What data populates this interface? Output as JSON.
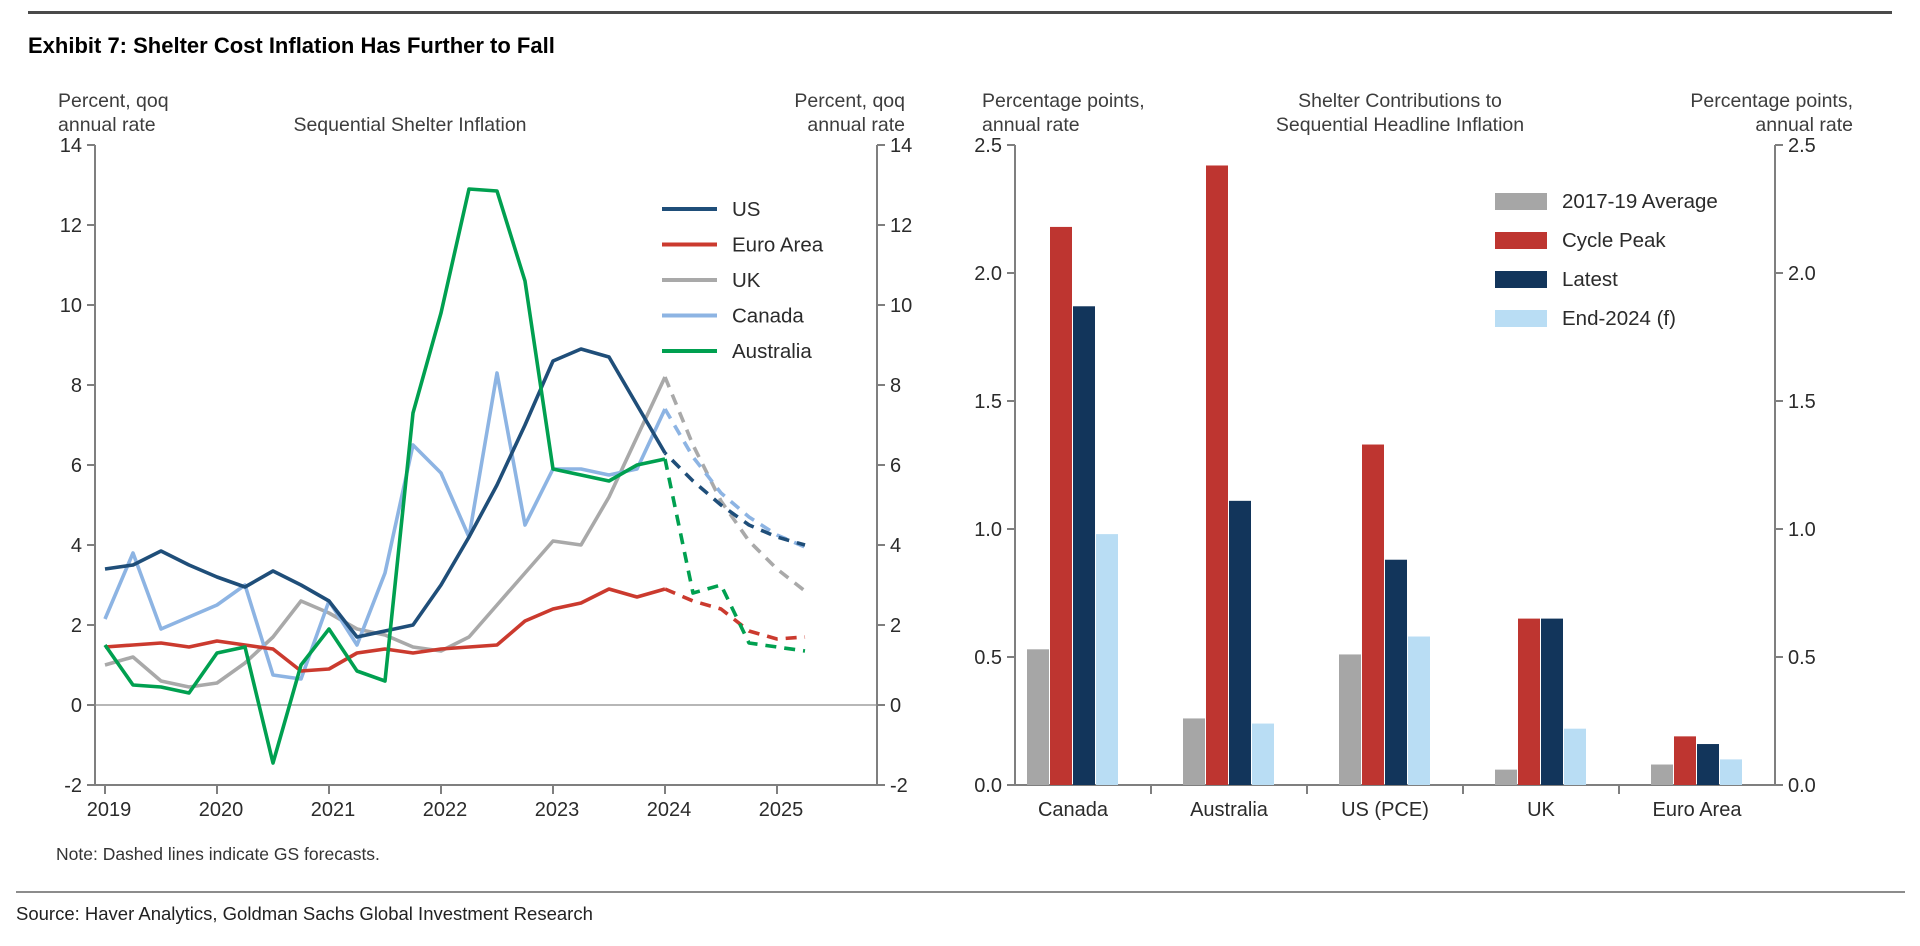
{
  "title": "Exhibit 7: Shelter Cost Inflation Has Further to Fall",
  "note": "Note: Dashed lines indicate GS forecasts.",
  "source": "Source: Haver Analytics, Goldman Sachs Global Investment Research",
  "chart_data": [
    {
      "id": "sequential-shelter-inflation",
      "type": "line",
      "title": "Sequential Shelter Inflation",
      "left_axis_header": [
        "Percent, qoq",
        "annual rate"
      ],
      "right_axis_header": [
        "Percent, qoq",
        "annual rate"
      ],
      "ylim": [
        -2,
        14
      ],
      "y_ticks": [
        14,
        12,
        10,
        8,
        6,
        4,
        2,
        0,
        -2
      ],
      "x_year_labels": [
        "2019",
        "2020",
        "2021",
        "2022",
        "2023",
        "2024",
        "2025"
      ],
      "frequency": "quarterly",
      "x_start": "2019Q1",
      "x_end": "2025Q2",
      "grid": "zero-line-only",
      "legend_position": "upper-right-inside",
      "series": [
        {
          "name": "US",
          "color": "#1F4E79",
          "forecast_from_index": 20,
          "values": [
            3.4,
            3.5,
            3.85,
            3.5,
            3.2,
            2.95,
            3.35,
            3.0,
            2.6,
            1.7,
            1.85,
            2.0,
            3.0,
            4.2,
            5.5,
            7.0,
            8.6,
            8.9,
            8.7,
            7.5,
            6.3,
            5.6,
            5.0,
            4.5,
            4.2,
            4.0
          ]
        },
        {
          "name": "Euro Area",
          "color": "#CB3A2E",
          "forecast_from_index": 20,
          "values": [
            1.45,
            1.5,
            1.55,
            1.45,
            1.6,
            1.5,
            1.4,
            0.85,
            0.9,
            1.3,
            1.4,
            1.3,
            1.4,
            1.45,
            1.5,
            2.1,
            2.4,
            2.55,
            2.9,
            2.7,
            2.9,
            2.6,
            2.4,
            1.85,
            1.65,
            1.7
          ]
        },
        {
          "name": "UK",
          "color": "#A9A9A9",
          "forecast_from_index": 20,
          "values": [
            1.0,
            1.2,
            0.6,
            0.45,
            0.55,
            1.05,
            1.7,
            2.6,
            2.3,
            1.9,
            1.75,
            1.45,
            1.35,
            1.7,
            2.5,
            3.3,
            4.1,
            4.0,
            5.2,
            6.7,
            8.2,
            6.5,
            5.1,
            4.1,
            3.4,
            2.85
          ]
        },
        {
          "name": "Canada",
          "color": "#8DB4E3",
          "forecast_from_index": 20,
          "values": [
            2.15,
            3.8,
            1.9,
            2.2,
            2.5,
            3.0,
            0.75,
            0.65,
            2.6,
            1.5,
            3.3,
            6.5,
            5.8,
            4.2,
            8.3,
            4.5,
            5.9,
            5.9,
            5.75,
            5.9,
            7.4,
            6.2,
            5.3,
            4.7,
            4.25,
            3.95
          ]
        },
        {
          "name": "Australia",
          "color": "#00A050",
          "forecast_from_index": 20,
          "values": [
            1.5,
            0.5,
            0.45,
            0.3,
            1.3,
            1.45,
            -1.45,
            1.0,
            1.9,
            0.85,
            0.6,
            7.3,
            9.8,
            12.9,
            12.85,
            10.6,
            5.9,
            5.75,
            5.6,
            6.0,
            6.15,
            2.8,
            3.0,
            1.55,
            1.45,
            1.35
          ]
        }
      ]
    },
    {
      "id": "shelter-contributions",
      "type": "bar",
      "title_lines": [
        "Shelter Contributions to",
        "Sequential Headline Inflation"
      ],
      "left_axis_header": [
        "Percentage points,",
        "annual rate"
      ],
      "right_axis_header": [
        "Percentage points,",
        "annual rate"
      ],
      "ylim": [
        0,
        2.5
      ],
      "y_ticks": [
        0.0,
        0.5,
        1.0,
        1.5,
        2.0,
        2.5
      ],
      "categories": [
        "Canada",
        "Australia",
        "US (PCE)",
        "UK",
        "Euro Area"
      ],
      "grid": "off",
      "legend_position": "upper-right-inside",
      "series": [
        {
          "name": "2017-19 Average",
          "color": "#A6A6A6",
          "values": [
            0.53,
            0.26,
            0.51,
            0.06,
            0.08
          ]
        },
        {
          "name": "Cycle Peak",
          "color": "#BE3530",
          "values": [
            2.18,
            2.42,
            1.33,
            0.65,
            0.19
          ]
        },
        {
          "name": "Latest",
          "color": "#12355B",
          "values": [
            1.87,
            1.11,
            0.88,
            0.65,
            0.16
          ]
        },
        {
          "name": "End-2024 (f)",
          "color": "#B9DDF4",
          "values": [
            0.98,
            0.24,
            0.58,
            0.22,
            0.1
          ]
        }
      ]
    }
  ]
}
